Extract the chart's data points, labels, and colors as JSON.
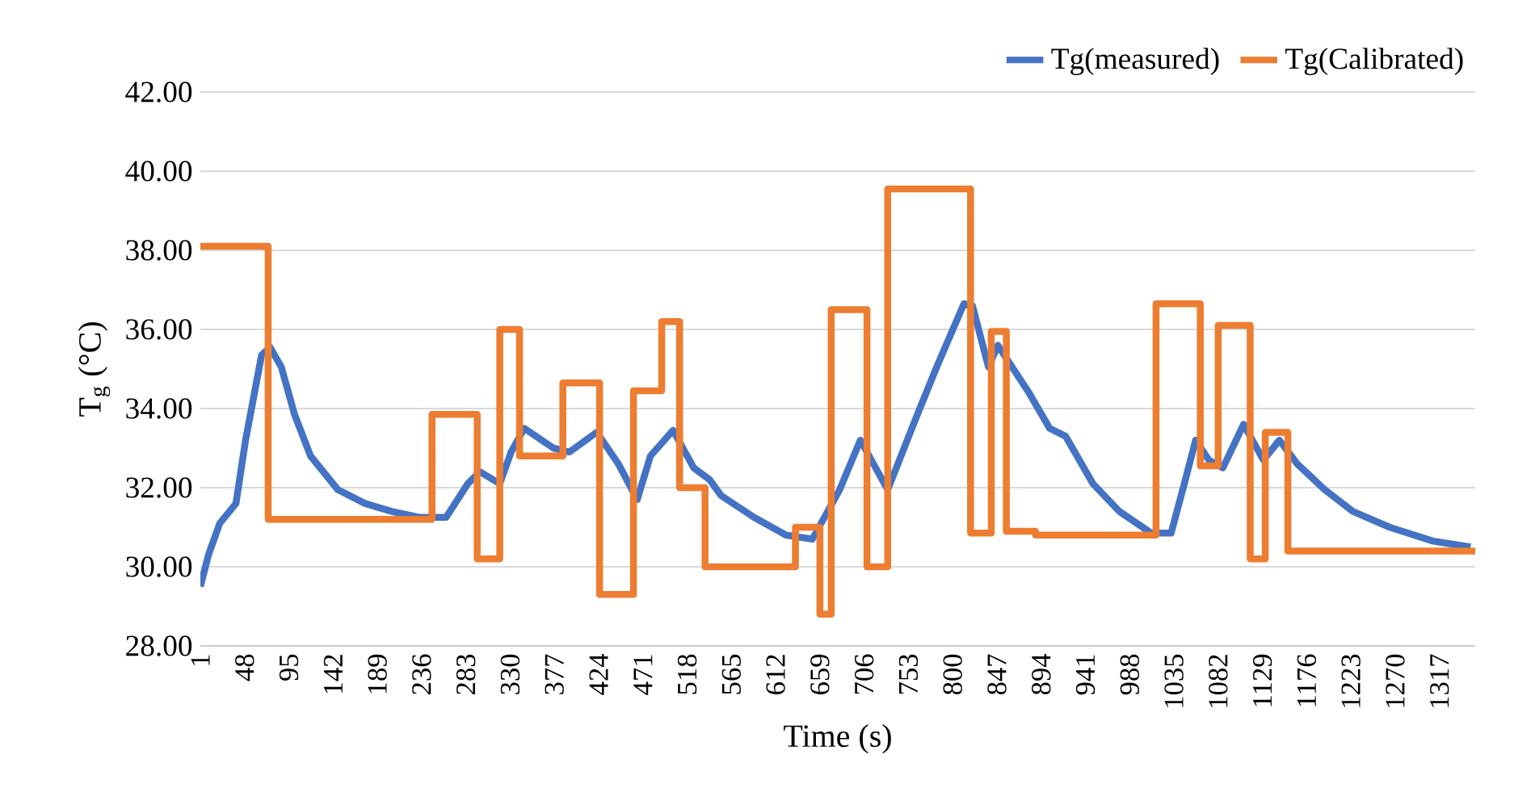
{
  "chart_data": {
    "type": "line",
    "xlabel": "Time (s)",
    "ylabel": "T$_{g}$ (°C)",
    "xlim": [
      1,
      1355
    ],
    "xticks": [
      1,
      48,
      95,
      142,
      189,
      236,
      283,
      330,
      377,
      424,
      471,
      518,
      565,
      612,
      659,
      706,
      753,
      800,
      847,
      894,
      941,
      988,
      1035,
      1082,
      1129,
      1176,
      1223,
      1270,
      1317
    ],
    "ylim": [
      28,
      42
    ],
    "yticks": [
      {
        "value": 28,
        "label": "28.00"
      },
      {
        "value": 30,
        "label": "30.00"
      },
      {
        "value": 32,
        "label": "32.00"
      },
      {
        "value": 34,
        "label": "34.00"
      },
      {
        "value": 36,
        "label": "36.00"
      },
      {
        "value": 38,
        "label": "38.00"
      },
      {
        "value": 40,
        "label": "40.00"
      },
      {
        "value": 42,
        "label": "42.00"
      }
    ],
    "grid": "y",
    "legend": "top right",
    "marker": "none",
    "line_style": "solid",
    "series": [
      {
        "name": "Tg(measured)",
        "color": "#4472c4",
        "x": [
          1,
          9.6,
          21.6,
          38.8,
          49,
          66,
          75,
          87,
          101,
          118,
          147,
          176,
          204,
          233,
          262,
          285,
          298,
          319,
          331,
          345,
          376,
          393,
          422,
          445,
          465,
          479,
          503,
          525,
          542,
          554,
          589,
          623,
          651,
          680,
          702,
          731,
          760,
          783,
          812,
          821,
          838,
          848,
          881,
          903,
          920,
          949,
          977,
          1011,
          1032,
          1046,
          1058,
          1072,
          1087,
          1109,
          1130,
          1147,
          1166,
          1195,
          1225,
          1264,
          1310,
          1350
        ],
        "values": [
          29.5,
          30.3,
          31.1,
          31.6,
          33.2,
          35.35,
          35.55,
          35.05,
          33.85,
          32.8,
          31.95,
          31.6,
          31.4,
          31.25,
          31.25,
          32.1,
          32.4,
          32.1,
          32.9,
          33.5,
          33.0,
          32.9,
          33.4,
          32.6,
          31.7,
          32.8,
          33.45,
          32.5,
          32.2,
          31.8,
          31.25,
          30.8,
          30.7,
          31.95,
          33.2,
          31.95,
          33.7,
          35.05,
          36.65,
          36.6,
          35.05,
          35.6,
          34.4,
          33.5,
          33.3,
          32.1,
          31.4,
          30.85,
          30.85,
          32.1,
          33.2,
          32.7,
          32.5,
          33.6,
          32.7,
          33.2,
          32.6,
          31.95,
          31.4,
          31.0,
          30.65,
          30.5
        ]
      },
      {
        "name": "Tg(Calibrated)",
        "color": "#ed7d31",
        "type": "step",
        "x": [
          1,
          73,
          247,
          295,
          319,
          340,
          386,
          425,
          461,
          491,
          510,
          537,
          633,
          659,
          671,
          709,
          731,
          819,
          841,
          857,
          888,
          1016,
          1063,
          1082,
          1116,
          1132,
          1156,
          1355
        ],
        "values": [
          38.1,
          31.2,
          33.85,
          30.2,
          36.0,
          32.8,
          34.65,
          29.3,
          34.45,
          36.2,
          32.0,
          30.0,
          31.0,
          28.8,
          36.5,
          30.0,
          39.55,
          30.85,
          35.95,
          30.9,
          30.8,
          36.65,
          32.55,
          36.1,
          30.2,
          33.4,
          30.4,
          30.4
        ]
      }
    ]
  }
}
